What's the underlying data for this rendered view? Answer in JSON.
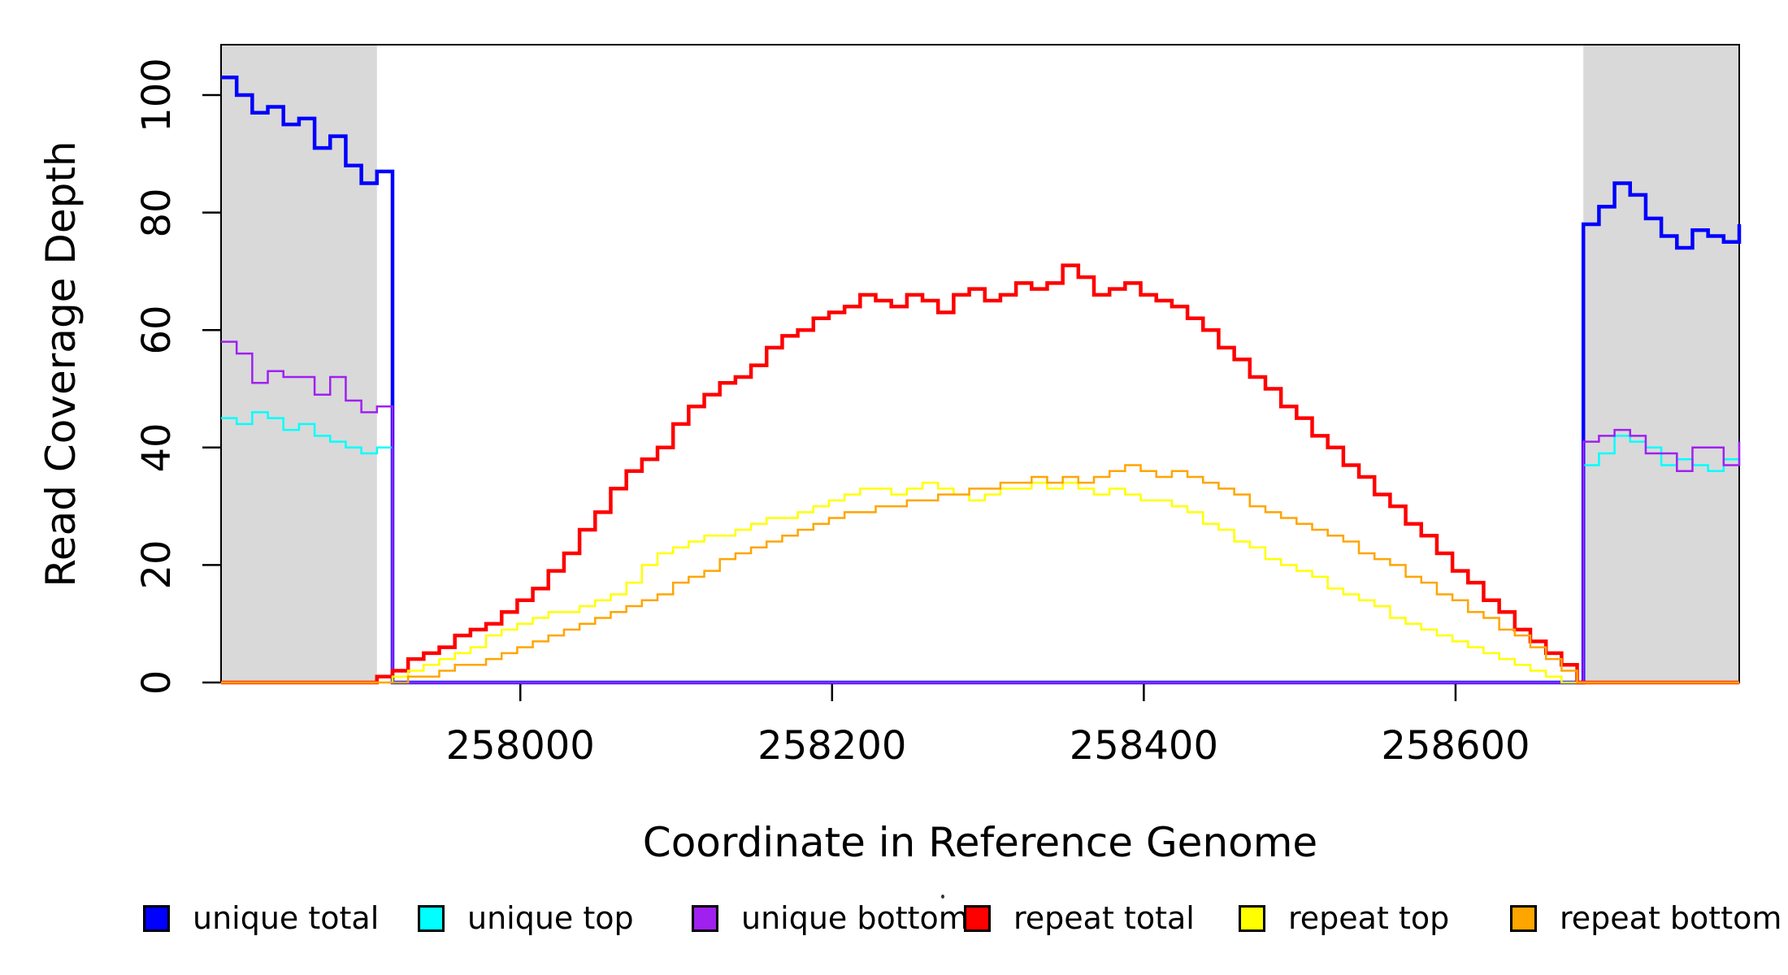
{
  "figure": {
    "x_axis_title": "Coordinate in Reference Genome",
    "y_axis_title": "Read Coverage Depth"
  },
  "chart_data": {
    "type": "line",
    "step": true,
    "title": "",
    "xlabel": "Coordinate in Reference Genome",
    "ylabel": "Read Coverage Depth",
    "x_domain": [
      257808,
      258782
    ],
    "y_domain": [
      0,
      108.6
    ],
    "x_ticks": [
      258000,
      258200,
      258400,
      258600
    ],
    "y_ticks": [
      0,
      20,
      40,
      60,
      80,
      100
    ],
    "grid": false,
    "legend_position": "bottom",
    "sample_step_bp": 10,
    "shade_color": "#D9D9D9",
    "shaded_regions": [
      [
        257808,
        257908
      ],
      [
        258682,
        258782
      ]
    ],
    "region_note": "shaded = unique flanks where unique-read series are nonzero; center = repeat region where repeat-read series are nonzero; all series are 0 elsewhere",
    "series": [
      {
        "name": "unique total",
        "color": "#0000FF",
        "width": 4.5,
        "segments": [
          {
            "x0": 257808,
            "values": [
              103,
              100,
              97,
              98,
              95,
              96,
              91,
              93,
              88,
              85,
              87
            ]
          },
          {
            "x0": 258682,
            "values": [
              78,
              81,
              85,
              83,
              79,
              76,
              74,
              77,
              76,
              75,
              78
            ]
          }
        ]
      },
      {
        "name": "unique top",
        "color": "#00FFFF",
        "width": 2.5,
        "segments": [
          {
            "x0": 257808,
            "values": [
              45,
              44,
              46,
              45,
              43,
              44,
              42,
              41,
              40,
              39,
              40
            ]
          },
          {
            "x0": 258682,
            "values": [
              37,
              39,
              42,
              41,
              40,
              37,
              38,
              37,
              36,
              38,
              37
            ]
          }
        ]
      },
      {
        "name": "unique bottom",
        "color": "#A020F0",
        "width": 2.5,
        "segments": [
          {
            "x0": 257808,
            "values": [
              58,
              56,
              51,
              53,
              52,
              52,
              49,
              52,
              48,
              46,
              47
            ]
          },
          {
            "x0": 258682,
            "values": [
              41,
              42,
              43,
              42,
              39,
              39,
              36,
              40,
              40,
              37,
              41
            ]
          }
        ]
      },
      {
        "name": "repeat total",
        "color": "#FF0000",
        "width": 4.5,
        "segments": [
          {
            "x0": 257908,
            "values": [
              1,
              2,
              4,
              5,
              6,
              8,
              9,
              10,
              12,
              14,
              16,
              19,
              22,
              26,
              29,
              33,
              36,
              38,
              40,
              44,
              47,
              49,
              51,
              52,
              54,
              57,
              59,
              60,
              62,
              63,
              64,
              66,
              65,
              64,
              66,
              65,
              63,
              66,
              67,
              65,
              66,
              68,
              67,
              68,
              71,
              69,
              66,
              67,
              68,
              66,
              65,
              64,
              62,
              60,
              57,
              55,
              52,
              50,
              47,
              45,
              42,
              40,
              37,
              35,
              32,
              30,
              27,
              25,
              22,
              19,
              17,
              14,
              12,
              9,
              7,
              5,
              3,
              0
            ]
          }
        ]
      },
      {
        "name": "repeat top",
        "color": "#FFFF00",
        "width": 2.5,
        "segments": [
          {
            "x0": 257908,
            "values": [
              0,
              1,
              2,
              3,
              4,
              5,
              6,
              8,
              9,
              10,
              11,
              12,
              12,
              13,
              14,
              15,
              17,
              20,
              22,
              23,
              24,
              25,
              25,
              26,
              27,
              28,
              28,
              29,
              30,
              31,
              32,
              33,
              33,
              32,
              33,
              34,
              33,
              32,
              31,
              32,
              33,
              33,
              34,
              33,
              34,
              33,
              32,
              33,
              32,
              31,
              31,
              30,
              29,
              27,
              26,
              24,
              23,
              21,
              20,
              19,
              18,
              16,
              15,
              14,
              13,
              11,
              10,
              9,
              8,
              7,
              6,
              5,
              4,
              3,
              2,
              1,
              0,
              0
            ]
          }
        ]
      },
      {
        "name": "repeat bottom",
        "color": "#FFA500",
        "width": 2.5,
        "segments": [
          {
            "x0": 257908,
            "values": [
              0,
              0,
              1,
              1,
              2,
              3,
              3,
              4,
              5,
              6,
              7,
              8,
              9,
              10,
              11,
              12,
              13,
              14,
              15,
              17,
              18,
              19,
              21,
              22,
              23,
              24,
              25,
              26,
              27,
              28,
              29,
              29,
              30,
              30,
              31,
              31,
              32,
              32,
              33,
              33,
              34,
              34,
              35,
              34,
              35,
              34,
              35,
              36,
              37,
              36,
              35,
              36,
              35,
              34,
              33,
              32,
              30,
              29,
              28,
              27,
              26,
              25,
              24,
              22,
              21,
              20,
              18,
              17,
              15,
              14,
              12,
              11,
              9,
              8,
              6,
              4,
              2,
              0
            ]
          }
        ]
      }
    ]
  },
  "legend": {
    "items": [
      {
        "label": "unique total",
        "color": "#0000FF"
      },
      {
        "label": "unique top",
        "color": "#00FFFF"
      },
      {
        "label": "unique bottom",
        "color": "#A020F0"
      },
      {
        "label": "repeat total",
        "color": "#FF0000"
      },
      {
        "label": "repeat top",
        "color": "#FFFF00"
      },
      {
        "label": "repeat bottom",
        "color": "#FFA500"
      }
    ]
  }
}
